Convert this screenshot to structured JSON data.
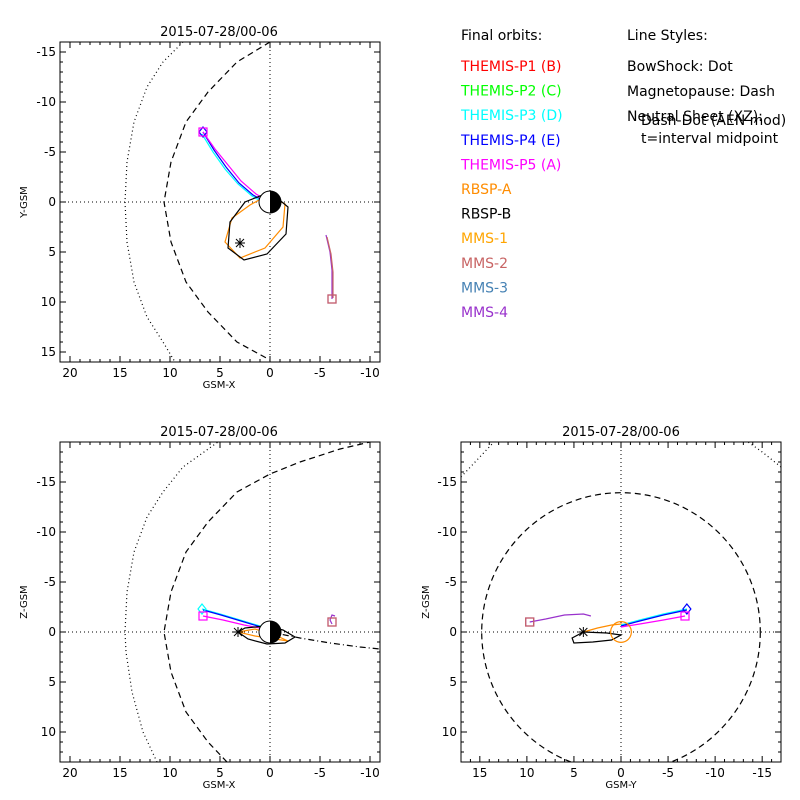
{
  "chart_data": [
    {
      "type": "scatter",
      "title": "2015-07-28/00-06",
      "xlabel": "GSM-X",
      "ylabel": "Y-GSM",
      "xlim": [
        21,
        -11
      ],
      "ylim": [
        -16,
        16
      ],
      "xticks": [
        20,
        15,
        10,
        5,
        0,
        -5,
        -10
      ],
      "yticks": [
        -15,
        -10,
        -5,
        0,
        5,
        10,
        15
      ],
      "reference_lines": [
        "x=0 dotted",
        "y=0 dotted"
      ],
      "series": [
        {
          "name": "BowShock",
          "style": "dotted",
          "color": "#000000",
          "points": [
            [
              8.7,
              -16
            ],
            [
              10.7,
              -14
            ],
            [
              12.3,
              -11.5
            ],
            [
              13.6,
              -8
            ],
            [
              14.3,
              -4
            ],
            [
              14.5,
              0
            ],
            [
              14.3,
              4
            ],
            [
              13.6,
              8
            ],
            [
              12.3,
              11.5
            ],
            [
              10.7,
              14
            ],
            [
              9.5,
              16
            ]
          ]
        },
        {
          "name": "Magnetopause",
          "style": "dashed",
          "color": "#000000",
          "points": [
            [
              0,
              -16
            ],
            [
              3.3,
              -14
            ],
            [
              6.2,
              -11
            ],
            [
              8.4,
              -8
            ],
            [
              9.9,
              -4
            ],
            [
              10.6,
              0
            ],
            [
              9.9,
              4
            ],
            [
              8.4,
              8
            ],
            [
              6.2,
              11
            ],
            [
              3.3,
              14
            ],
            [
              0,
              15.8
            ]
          ]
        },
        {
          "name": "THEMIS-P4 (E)",
          "color": "#0000ff",
          "points": [
            [
              6.7,
              -7.0
            ],
            [
              5.6,
              -5.2
            ],
            [
              4.4,
              -3.5
            ],
            [
              3.1,
              -1.9
            ],
            [
              1.7,
              -0.7
            ],
            [
              0.2,
              0.1
            ]
          ]
        },
        {
          "name": "THEMIS-P3 (D)",
          "color": "#00ffff",
          "points": [
            [
              6.8,
              -6.8
            ],
            [
              5.7,
              -5.0
            ],
            [
              4.5,
              -3.3
            ],
            [
              3.2,
              -1.8
            ],
            [
              1.8,
              -0.6
            ],
            [
              0.4,
              0.2
            ]
          ]
        },
        {
          "name": "THEMIS-P5 (A)",
          "color": "#ff00ff",
          "points": [
            [
              6.7,
              -7.0
            ],
            [
              5.5,
              -5.3
            ],
            [
              4.2,
              -3.7
            ],
            [
              2.9,
              -2.1
            ],
            [
              1.4,
              -0.8
            ],
            [
              0.0,
              0.0
            ]
          ]
        },
        {
          "name": "RBSP-A",
          "color": "#ff8c00",
          "points": [
            [
              0.2,
              -0.7
            ],
            [
              -1.5,
              0.2
            ],
            [
              -1.3,
              2.5
            ],
            [
              0.5,
              4.6
            ],
            [
              3.0,
              5.6
            ],
            [
              4.5,
              4.0
            ],
            [
              3.8,
              1.6
            ],
            [
              2.0,
              0.3
            ],
            [
              0.2,
              -0.7
            ]
          ]
        },
        {
          "name": "RBSP-B",
          "color": "#000000",
          "points": [
            [
              0.0,
              -1.0
            ],
            [
              -1.8,
              0.5
            ],
            [
              -1.6,
              3.2
            ],
            [
              0.3,
              5.2
            ],
            [
              2.6,
              5.8
            ],
            [
              4.2,
              4.6
            ],
            [
              4.0,
              2.0
            ],
            [
              2.5,
              0.0
            ],
            [
              0.0,
              -1.0
            ]
          ]
        },
        {
          "name": "MMS-4",
          "color": "#9932cc",
          "points": [
            [
              -5.6,
              3.3
            ],
            [
              -6.0,
              5.0
            ],
            [
              -6.2,
              6.8
            ],
            [
              -6.2,
              8.3
            ],
            [
              -6.2,
              9.7
            ]
          ]
        },
        {
          "name": "MMS-2",
          "color": "#c86464",
          "points": [
            [
              -5.7,
              3.5
            ],
            [
              -6.1,
              5.2
            ],
            [
              -6.3,
              7.0
            ],
            [
              -6.3,
              9.6
            ]
          ]
        }
      ],
      "markers": [
        {
          "shape": "diamond",
          "color": "#0000ff",
          "x": 6.7,
          "y": -7.0
        },
        {
          "shape": "square",
          "color": "#ff00ff",
          "x": 6.7,
          "y": -7.0
        },
        {
          "shape": "star",
          "color": "#000000",
          "x": 3.0,
          "y": 4.1
        },
        {
          "shape": "square",
          "color": "#9932cc",
          "x": -6.2,
          "y": 9.7
        },
        {
          "shape": "square",
          "color": "#c86464",
          "x": -6.2,
          "y": 9.7
        }
      ],
      "earth": {
        "x": 0,
        "y": 0,
        "r": 1
      }
    },
    {
      "type": "scatter",
      "title": "2015-07-28/00-06",
      "xlabel": "GSM-X",
      "ylabel": "Z-GSM",
      "xlim": [
        21,
        -11
      ],
      "ylim": [
        -19,
        13
      ],
      "xticks": [
        20,
        15,
        10,
        5,
        0,
        -5,
        -10
      ],
      "yticks": [
        -15,
        -10,
        -5,
        0,
        5,
        10
      ],
      "reference_lines": [
        "x=0 dotted",
        "y=0 dotted"
      ],
      "series": [
        {
          "name": "BowShock",
          "style": "dotted",
          "color": "#000000",
          "points": [
            [
              11.3,
              13
            ],
            [
              12.7,
              10
            ],
            [
              13.8,
              6
            ],
            [
              14.4,
              2
            ],
            [
              14.5,
              0
            ],
            [
              14.3,
              -4
            ],
            [
              13.6,
              -8
            ],
            [
              12.3,
              -11.5
            ],
            [
              10.7,
              -14
            ],
            [
              8.7,
              -16.5
            ],
            [
              5.2,
              -19
            ]
          ]
        },
        {
          "name": "Magnetopause",
          "style": "dashed",
          "color": "#000000",
          "points": [
            [
              4.3,
              13
            ],
            [
              6.2,
              11
            ],
            [
              8.4,
              8
            ],
            [
              9.9,
              4
            ],
            [
              10.6,
              0
            ],
            [
              9.9,
              -4
            ],
            [
              8.4,
              -8
            ],
            [
              6.2,
              -11
            ],
            [
              3.3,
              -14
            ],
            [
              0,
              -15.8
            ],
            [
              -3,
              -17
            ],
            [
              -7,
              -18.3
            ],
            [
              -10,
              -19
            ]
          ]
        },
        {
          "name": "Neutral Sheet",
          "style": "dashdot",
          "color": "#000000",
          "points": [
            [
              0,
              0
            ],
            [
              -3,
              0.6
            ],
            [
              -6,
              1.1
            ],
            [
              -9,
              1.5
            ],
            [
              -11,
              1.7
            ]
          ]
        },
        {
          "name": "THEMIS-P3 (D)",
          "color": "#00ffff",
          "points": [
            [
              6.8,
              -2.3
            ],
            [
              5.0,
              -1.8
            ],
            [
              3.0,
              -1.2
            ],
            [
              1.0,
              -0.6
            ],
            [
              -0.5,
              0.0
            ]
          ]
        },
        {
          "name": "THEMIS-P4 (E)",
          "color": "#0000ff",
          "points": [
            [
              6.7,
              -2.2
            ],
            [
              4.9,
              -1.7
            ],
            [
              2.9,
              -1.1
            ],
            [
              0.9,
              -0.5
            ],
            [
              -0.6,
              0.1
            ]
          ]
        },
        {
          "name": "THEMIS-P5 (A)",
          "color": "#ff00ff",
          "points": [
            [
              6.7,
              -1.6
            ],
            [
              4.7,
              -1.2
            ],
            [
              2.6,
              -0.7
            ],
            [
              0.5,
              -0.3
            ],
            [
              -1.0,
              0.0
            ]
          ]
        },
        {
          "name": "RBSP-A",
          "color": "#ff8c00",
          "points": [
            [
              3.2,
              0.0
            ],
            [
              1.5,
              0.4
            ],
            [
              -0.5,
              0.7
            ],
            [
              -1.8,
              0.9
            ],
            [
              -0.5,
              0.3
            ],
            [
              1.5,
              -0.3
            ],
            [
              3.2,
              0.0
            ]
          ]
        },
        {
          "name": "RBSP-B",
          "color": "#000000",
          "points": [
            [
              3.2,
              0.0
            ],
            [
              2.2,
              0.7
            ],
            [
              0.3,
              1.2
            ],
            [
              -1.5,
              1.1
            ],
            [
              -2.5,
              0.5
            ],
            [
              -1.3,
              -0.2
            ],
            [
              0.5,
              -0.6
            ],
            [
              2.5,
              -0.4
            ],
            [
              3.2,
              0.0
            ]
          ]
        },
        {
          "name": "MMS-4",
          "color": "#9932cc",
          "points": [
            [
              -6.2,
              -0.8
            ],
            [
              -6.0,
              -1.2
            ],
            [
              -6.2,
              -1.7
            ],
            [
              -6.5,
              -1.6
            ]
          ]
        }
      ],
      "markers": [
        {
          "shape": "diamond",
          "color": "#00ffff",
          "x": 6.8,
          "y": -2.3
        },
        {
          "shape": "square",
          "color": "#ff00ff",
          "x": 6.7,
          "y": -1.6
        },
        {
          "shape": "star",
          "color": "#000000",
          "x": 3.2,
          "y": 0.0
        },
        {
          "shape": "square",
          "color": "#9932cc",
          "x": -6.2,
          "y": -1.0
        },
        {
          "shape": "square",
          "color": "#c86464",
          "x": -6.2,
          "y": -1.0
        }
      ],
      "earth": {
        "x": 0,
        "y": 0,
        "r": 1
      }
    },
    {
      "type": "scatter",
      "title": "2015-07-28/00-06",
      "xlabel": "GSM-Y",
      "ylabel": "Z-GSM",
      "xlim": [
        17,
        -17
      ],
      "ylim": [
        -19,
        13
      ],
      "xticks": [
        15,
        10,
        5,
        0,
        -5,
        -10,
        -15
      ],
      "yticks": [
        -15,
        -10,
        -5,
        0,
        5,
        10
      ],
      "reference_lines": [
        "x=0 dotted",
        "y=0 dotted"
      ],
      "series": [
        {
          "name": "Magnetopause",
          "style": "dashed",
          "color": "#000000",
          "circle": {
            "cx": 0,
            "cy": 0,
            "r": 14.8
          }
        },
        {
          "name": "BowShock",
          "style": "dotted",
          "color": "#000000",
          "points_left": [
            [
              17,
              -15.5
            ],
            [
              15,
              -17.5
            ],
            [
              13.5,
              -19
            ]
          ],
          "points_right": [
            [
              -17,
              -16.5
            ],
            [
              -15,
              -18
            ],
            [
              -13.5,
              -19
            ]
          ]
        },
        {
          "name": "RBSP-B",
          "color": "#000000",
          "points": [
            [
              4.0,
              0.0
            ],
            [
              5.2,
              0.6
            ],
            [
              5.0,
              1.1
            ],
            [
              3.0,
              1.0
            ],
            [
              1.0,
              0.8
            ],
            [
              0.0,
              0.3
            ],
            [
              1.5,
              0.1
            ],
            [
              4.0,
              0.0
            ]
          ]
        },
        {
          "name": "RBSP-A",
          "color": "#ff8c00",
          "points": [
            [
              4.0,
              0.0
            ],
            [
              2.5,
              -0.4
            ],
            [
              1.0,
              -0.7
            ],
            [
              0.0,
              -0.8
            ],
            [
              -0.8,
              -0.6
            ]
          ]
        },
        {
          "name": "THEMIS-P3 (D)",
          "color": "#00ffff",
          "points": [
            [
              -7.0,
              -2.3
            ],
            [
              -4.5,
              -1.8
            ],
            [
              -2.0,
              -1.2
            ],
            [
              0.0,
              -0.7
            ]
          ]
        },
        {
          "name": "THEMIS-P4 (E)",
          "color": "#0000ff",
          "points": [
            [
              -7.0,
              -2.2
            ],
            [
              -4.5,
              -1.7
            ],
            [
              -2.0,
              -1.1
            ],
            [
              0.0,
              -0.6
            ]
          ]
        },
        {
          "name": "THEMIS-P5 (A)",
          "color": "#ff00ff",
          "points": [
            [
              -6.8,
              -1.6
            ],
            [
              -4.5,
              -1.2
            ],
            [
              -2.0,
              -0.8
            ],
            [
              0.0,
              -0.5
            ]
          ]
        },
        {
          "name": "MMS-4",
          "color": "#9932cc",
          "points": [
            [
              9.7,
              -1.0
            ],
            [
              8.0,
              -1.3
            ],
            [
              6.0,
              -1.7
            ],
            [
              4.0,
              -1.8
            ],
            [
              3.2,
              -1.6
            ]
          ]
        }
      ],
      "markers": [
        {
          "shape": "diamond",
          "color": "#0000ff",
          "x": -7.0,
          "y": -2.3
        },
        {
          "shape": "square",
          "color": "#ff00ff",
          "x": -6.8,
          "y": -1.6
        },
        {
          "shape": "star",
          "color": "#000000",
          "x": 4.0,
          "y": 0.0
        },
        {
          "shape": "square",
          "color": "#9932cc",
          "x": 9.7,
          "y": -1.0
        },
        {
          "shape": "square",
          "color": "#c86464",
          "x": 9.7,
          "y": -1.0
        }
      ],
      "earth": {
        "x": 0,
        "y": 0,
        "r": 1,
        "color": "#ff8c00"
      }
    }
  ],
  "legend": {
    "header": "Final orbits:",
    "items": [
      {
        "label": "THEMIS-P1 (B)",
        "color": "#ff0000"
      },
      {
        "label": "THEMIS-P2 (C)",
        "color": "#00ff00"
      },
      {
        "label": "THEMIS-P3 (D)",
        "color": "#00ffff"
      },
      {
        "label": "THEMIS-P4 (E)",
        "color": "#0000ff"
      },
      {
        "label": "THEMIS-P5 (A)",
        "color": "#ff00ff"
      },
      {
        "label": "RBSP-A",
        "color": "#ff8c00"
      },
      {
        "label": "RBSP-B",
        "color": "#000000"
      },
      {
        "label": "MMS-1",
        "color": "#ffa500"
      },
      {
        "label": "MMS-2",
        "color": "#c86464"
      },
      {
        "label": "MMS-3",
        "color": "#4682b4"
      },
      {
        "label": "MMS-4",
        "color": "#9932cc"
      }
    ]
  },
  "line_styles": {
    "header": "Line Styles:",
    "lines": [
      "BowShock: Dot",
      "Magnetopause: Dash",
      "Neutral Sheet (XZ):",
      "  Dash-Dot (AEN mod)",
      "  t=interval midpoint"
    ]
  }
}
